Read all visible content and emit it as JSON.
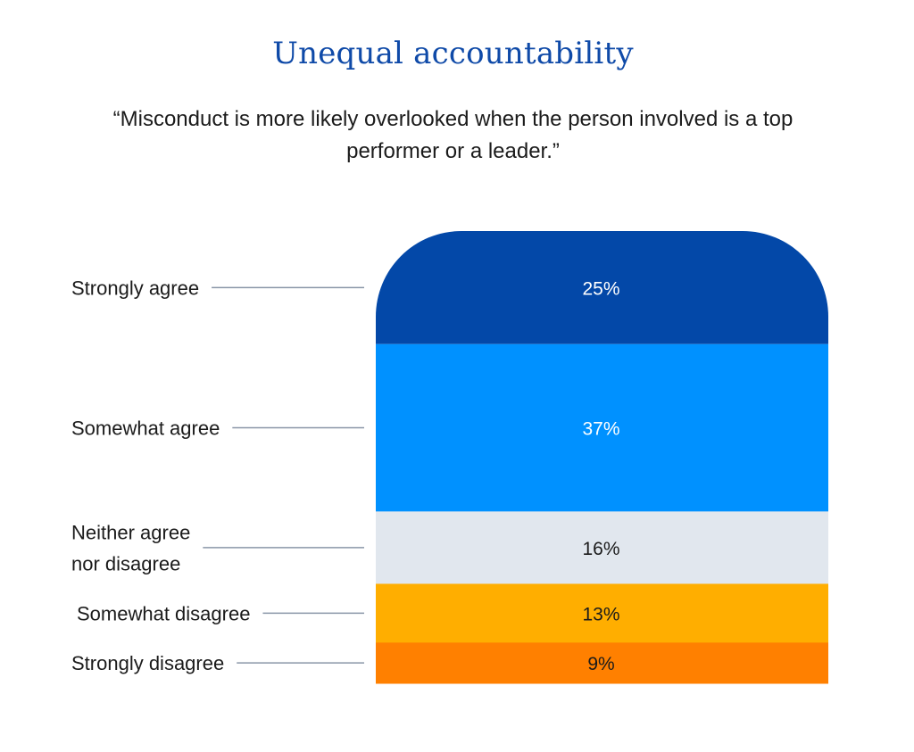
{
  "chart_data": {
    "type": "bar",
    "orientation": "stacked-vertical",
    "title": "Unequal accountability",
    "subtitle": "“Misconduct is more likely overlooked when the person involved is a top performer or a leader.”",
    "unit": "%",
    "categories": [
      "Strongly agree",
      "Somewhat agree",
      "Neither agree nor disagree",
      "Somewhat disagree",
      "Strongly disagree"
    ],
    "category_lines": [
      [
        "Strongly agree"
      ],
      [
        "Somewhat agree"
      ],
      [
        "Neither agree",
        "nor disagree"
      ],
      [
        "Somewhat disagree"
      ],
      [
        "Strongly disagree"
      ]
    ],
    "values": [
      25,
      37,
      16,
      13,
      9
    ],
    "labels": [
      "25%",
      "37%",
      "16%",
      "13%",
      "9%"
    ],
    "colors": [
      "#0348a8",
      "#0091ff",
      "#e1e7ee",
      "#ffae00",
      "#ff8000"
    ],
    "label_colors": [
      "#ffffff",
      "#ffffff",
      "#1b1b1b",
      "#1b1b1b",
      "#1b1b1b"
    ],
    "stack_order": "top-to-bottom",
    "total": 100
  }
}
